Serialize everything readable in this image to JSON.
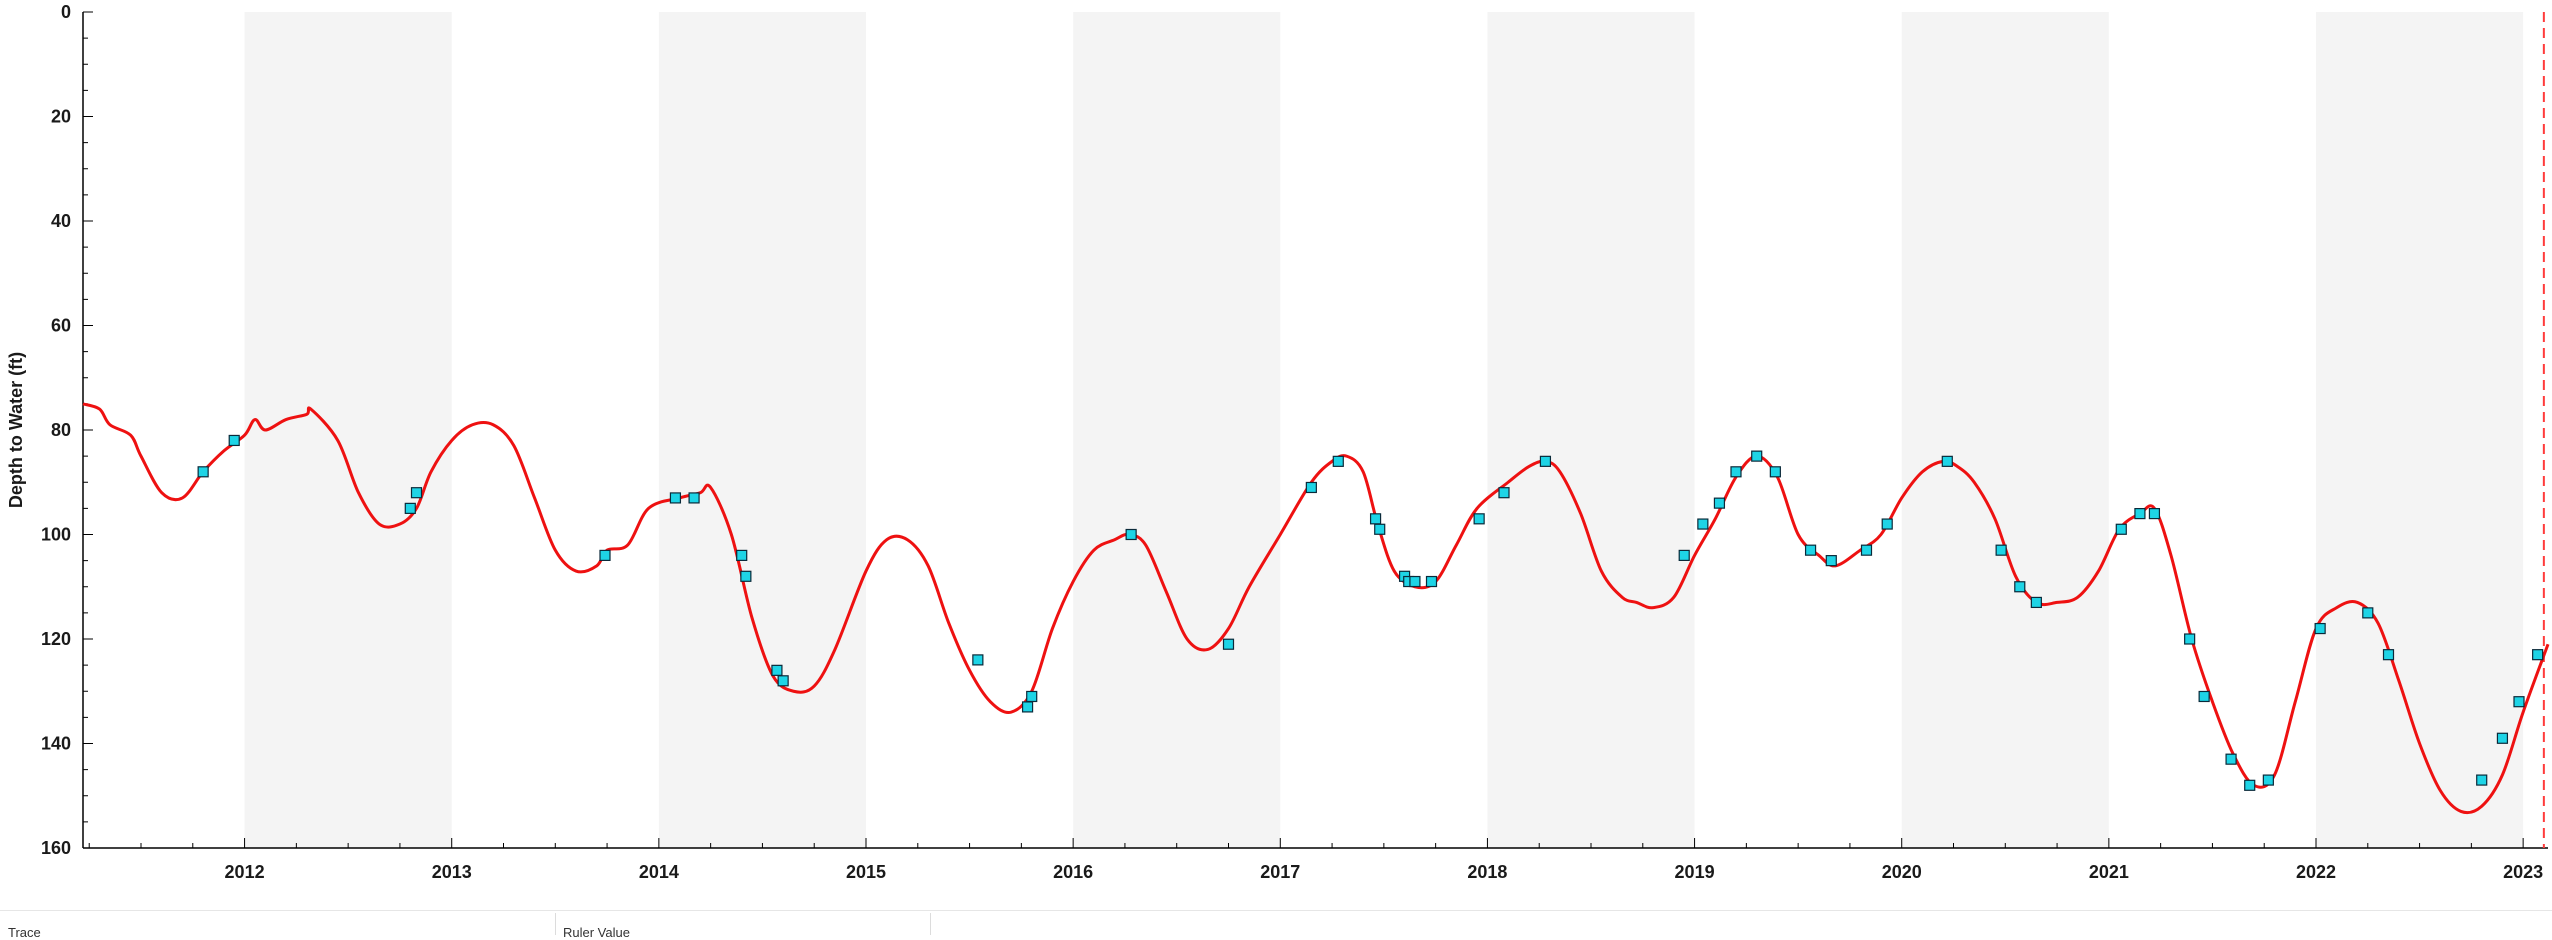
{
  "chart_data": {
    "type": "line",
    "title": "",
    "xlabel": "",
    "ylabel": "Depth to Water (ft)",
    "ylim": [
      0,
      160
    ],
    "y_inverted": true,
    "y_ticks": [
      0,
      20,
      40,
      60,
      80,
      100,
      120,
      140,
      160
    ],
    "x_range": [
      2011.22,
      2023.12
    ],
    "x_ticks": [
      2012,
      2013,
      2014,
      2015,
      2016,
      2017,
      2018,
      2019,
      2020,
      2021,
      2022,
      2023
    ],
    "grid": "alternating year bands",
    "reference_line": {
      "x": 2023.1,
      "style": "dashed",
      "color": "#ff3b3b"
    },
    "series": [
      {
        "type": "line",
        "color": "#ee1111",
        "x": [
          2011.22,
          2011.3,
          2011.35,
          2011.45,
          2011.5,
          2011.6,
          2011.7,
          2011.8,
          2011.9,
          2012.0,
          2012.05,
          2012.1,
          2012.2,
          2012.3,
          2012.32,
          2012.45,
          2012.55,
          2012.65,
          2012.75,
          2012.83,
          2012.9,
          2013.0,
          2013.1,
          2013.2,
          2013.3,
          2013.4,
          2013.5,
          2013.6,
          2013.7,
          2013.75,
          2013.85,
          2013.95,
          2014.1,
          2014.2,
          2014.25,
          2014.35,
          2014.45,
          2014.55,
          2014.65,
          2014.75,
          2014.85,
          2015.0,
          2015.1,
          2015.2,
          2015.3,
          2015.4,
          2015.5,
          2015.6,
          2015.7,
          2015.8,
          2015.9,
          2016.0,
          2016.1,
          2016.2,
          2016.27,
          2016.35,
          2016.45,
          2016.55,
          2016.65,
          2016.75,
          2016.85,
          2017.0,
          2017.15,
          2017.25,
          2017.32,
          2017.4,
          2017.47,
          2017.55,
          2017.65,
          2017.75,
          2017.85,
          2017.95,
          2018.1,
          2018.2,
          2018.28,
          2018.35,
          2018.45,
          2018.55,
          2018.65,
          2018.72,
          2018.8,
          2018.9,
          2019.0,
          2019.1,
          2019.2,
          2019.3,
          2019.4,
          2019.5,
          2019.6,
          2019.68,
          2019.8,
          2019.9,
          2020.0,
          2020.1,
          2020.2,
          2020.27,
          2020.35,
          2020.45,
          2020.55,
          2020.65,
          2020.75,
          2020.85,
          2020.95,
          2021.05,
          2021.15,
          2021.22,
          2021.3,
          2021.4,
          2021.5,
          2021.6,
          2021.7,
          2021.8,
          2021.9,
          2022.0,
          2022.1,
          2022.2,
          2022.3,
          2022.4,
          2022.5,
          2022.6,
          2022.7,
          2022.8,
          2022.9,
          2023.0,
          2023.12
        ],
        "y": [
          75,
          76,
          79,
          81,
          85,
          92,
          93,
          88,
          84,
          81,
          78,
          80,
          78,
          77,
          76,
          82,
          92,
          98,
          98,
          95,
          88,
          82,
          79,
          79,
          83,
          93,
          103,
          107,
          106,
          103,
          102,
          95,
          93,
          92,
          91,
          100,
          116,
          127,
          130,
          129,
          122,
          107,
          101,
          101,
          106,
          117,
          126,
          132,
          134,
          130,
          118,
          109,
          103,
          101,
          100,
          102,
          111,
          120,
          122,
          118,
          110,
          100,
          90,
          86,
          85,
          88,
          98,
          107,
          110,
          109,
          102,
          95,
          90,
          87,
          86,
          88,
          96,
          107,
          112,
          113,
          114,
          112,
          104,
          97,
          89,
          85,
          89,
          100,
          104,
          106,
          103,
          100,
          93,
          88,
          86,
          87,
          90,
          97,
          108,
          113,
          113,
          112,
          107,
          99,
          96,
          95,
          104,
          120,
          132,
          142,
          148,
          146,
          132,
          118,
          114,
          113,
          117,
          128,
          140,
          149,
          153,
          152,
          146,
          134,
          121
        ]
      },
      {
        "type": "scatter",
        "name": "",
        "marker": "square",
        "color": "#1ed4e6",
        "x": [
          2011.8,
          2011.95,
          2012.8,
          2012.83,
          2013.74,
          2014.08,
          2014.17,
          2014.4,
          2014.42,
          2014.57,
          2014.6,
          2015.54,
          2015.78,
          2015.8,
          2016.28,
          2016.75,
          2017.15,
          2017.28,
          2017.46,
          2017.48,
          2017.6,
          2017.62,
          2017.65,
          2017.73,
          2017.96,
          2018.08,
          2018.28,
          2018.95,
          2019.04,
          2019.12,
          2019.2,
          2019.3,
          2019.39,
          2019.56,
          2019.66,
          2019.83,
          2019.93,
          2020.22,
          2020.48,
          2020.57,
          2020.65,
          2021.06,
          2021.15,
          2021.22,
          2021.39,
          2021.46,
          2021.59,
          2021.68,
          2021.77,
          2022.02,
          2022.25,
          2022.35,
          2022.8,
          2022.9,
          2022.98,
          2023.07
        ],
        "y": [
          88,
          82,
          95,
          92,
          104,
          93,
          93,
          104,
          108,
          126,
          128,
          124,
          133,
          131,
          100,
          121,
          91,
          86,
          97,
          99,
          108,
          109,
          109,
          109,
          97,
          92,
          86,
          104,
          98,
          94,
          88,
          85,
          88,
          103,
          105,
          103,
          98,
          86,
          103,
          110,
          113,
          99,
          96,
          96,
          120,
          131,
          143,
          148,
          147,
          118,
          115,
          123,
          147,
          139,
          132,
          123
        ]
      }
    ]
  },
  "panel": {
    "col1_header": "Trace",
    "col2_header": "Ruler Value"
  }
}
